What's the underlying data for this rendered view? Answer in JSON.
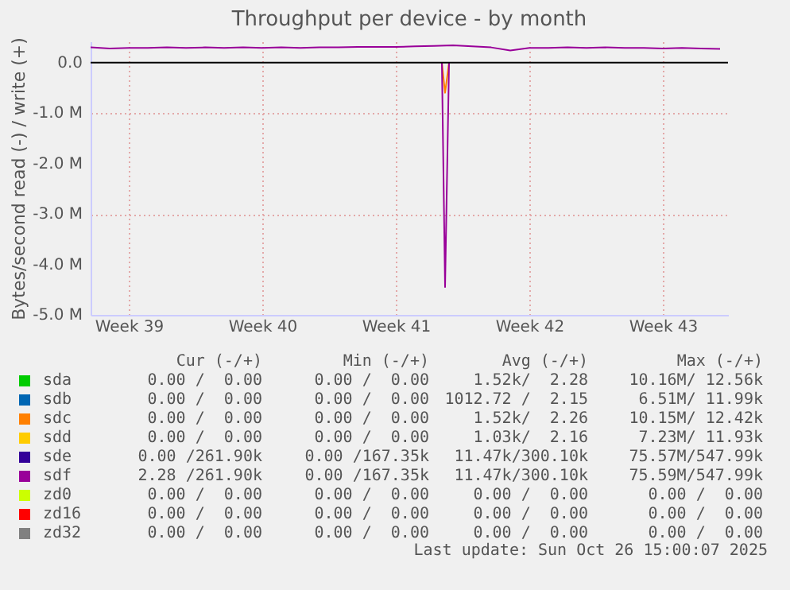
{
  "chart_data": {
    "type": "line",
    "title": "Throughput per device - by month",
    "ylabel": "Bytes/second read (-) / write (+)",
    "xlim": [
      "2025-09-23T12:00",
      "2025-10-26T22:00"
    ],
    "xticks": [
      {
        "value": "2025-09-25T12:00",
        "label": "Week 39"
      },
      {
        "value": "2025-10-02T12:00",
        "label": "Week 40"
      },
      {
        "value": "2025-10-09T12:00",
        "label": "Week 41"
      },
      {
        "value": "2025-10-16T12:00",
        "label": "Week 42"
      },
      {
        "value": "2025-10-23T12:00",
        "label": "Week 43"
      }
    ],
    "ylim": [
      -5000000,
      420000
    ],
    "yticks": [
      {
        "value": -5000000,
        "label": "-5.0 M"
      },
      {
        "value": -4000000,
        "label": "-4.0 M"
      },
      {
        "value": -3000000,
        "label": "-3.0 M"
      },
      {
        "value": -2000000,
        "label": "-2.0 M"
      },
      {
        "value": -1000000,
        "label": "-1.0 M"
      },
      {
        "value": 0,
        "label": "0.0"
      }
    ],
    "grid": true,
    "legend": "bottom",
    "marker": "none",
    "line_style": "solid",
    "series": [
      {
        "name": "sda",
        "color": "#00cc00"
      },
      {
        "name": "sdb",
        "color": "#0066b3"
      },
      {
        "name": "sdc",
        "color": "#ff8000",
        "x": [
          "2025-10-11T22:00",
          "2025-10-12T02:00",
          "2025-10-12T07:00"
        ],
        "values": [
          0,
          -600000,
          0
        ]
      },
      {
        "name": "sdd",
        "color": "#ffcc00"
      },
      {
        "name": "sde",
        "color": "#330099"
      },
      {
        "name": "sdf",
        "color": "#990099",
        "x": [
          "2025-09-23T12:00",
          "2025-09-24T12:00",
          "2025-09-25T12:00",
          "2025-09-26T12:00",
          "2025-09-27T12:00",
          "2025-09-28T12:00",
          "2025-09-29T12:00",
          "2025-09-30T12:00",
          "2025-10-01T12:00",
          "2025-10-02T12:00",
          "2025-10-03T12:00",
          "2025-10-04T12:00",
          "2025-10-05T12:00",
          "2025-10-06T12:00",
          "2025-10-07T12:00",
          "2025-10-08T12:00",
          "2025-10-09T12:00",
          "2025-10-10T12:00",
          "2025-10-11T12:00",
          "2025-10-12T12:00",
          "2025-10-13T12:00",
          "2025-10-14T12:00",
          "2025-10-15T12:00",
          "2025-10-16T12:00",
          "2025-10-17T12:00",
          "2025-10-18T12:00",
          "2025-10-19T12:00",
          "2025-10-20T12:00",
          "2025-10-21T12:00",
          "2025-10-22T12:00",
          "2025-10-23T12:00",
          "2025-10-24T12:00",
          "2025-10-25T12:00",
          "2025-10-26T12:00"
        ],
        "values": [
          300000,
          280000,
          290000,
          290000,
          300000,
          290000,
          300000,
          290000,
          300000,
          290000,
          300000,
          290000,
          300000,
          300000,
          310000,
          310000,
          310000,
          320000,
          330000,
          340000,
          320000,
          300000,
          240000,
          290000,
          290000,
          300000,
          290000,
          300000,
          290000,
          290000,
          280000,
          290000,
          280000,
          270000
        ]
      },
      {
        "color": "#990099",
        "x": [
          "2025-10-11T22:00",
          "2025-10-12T02:00",
          "2025-10-12T07:00"
        ],
        "values": [
          0,
          -4450000,
          0
        ]
      },
      {
        "name": "zd0",
        "color": "#ccff00"
      },
      {
        "name": "zd16",
        "color": "#ff0000"
      },
      {
        "name": "zd32",
        "color": "#808080"
      }
    ],
    "ref_lines": [
      {
        "axis": "y",
        "value": 0,
        "color": "#000000"
      }
    ],
    "annotations": [
      "Cur (-/+)",
      "Min (-/+)",
      "Avg (-/+)",
      "Max (-/+)",
      "0.00 /  0.00",
      "0.00 /  0.00",
      "1.52k/  2.28",
      "10.16M/ 12.56k",
      "0.00 /  0.00",
      "0.00 /  0.00",
      "1012.72 /  2.15",
      "6.51M/ 11.99k",
      "0.00 /  0.00",
      "0.00 /  0.00",
      "1.52k/  2.26",
      "10.15M/ 12.42k",
      "0.00 /  0.00",
      "0.00 /  0.00",
      "1.03k/  2.16",
      "7.23M/ 11.93k",
      "0.00 /261.90k",
      "0.00 /167.35k",
      "11.47k/300.10k",
      "75.57M/547.99k",
      "2.28 /261.90k",
      "0.00 /167.35k",
      "11.47k/300.10k",
      "75.59M/547.99k",
      "0.00 /  0.00",
      "0.00 /  0.00",
      "0.00 /  0.00",
      "0.00 /  0.00",
      "0.00 /  0.00",
      "0.00 /  0.00",
      "0.00 /  0.00",
      "0.00 /  0.00",
      "0.00 /  0.00",
      "0.00 /  0.00",
      "0.00 /  0.00",
      "0.00 /  0.00",
      "Last update: Sun Oct 26 15:00:07 2025"
    ]
  }
}
